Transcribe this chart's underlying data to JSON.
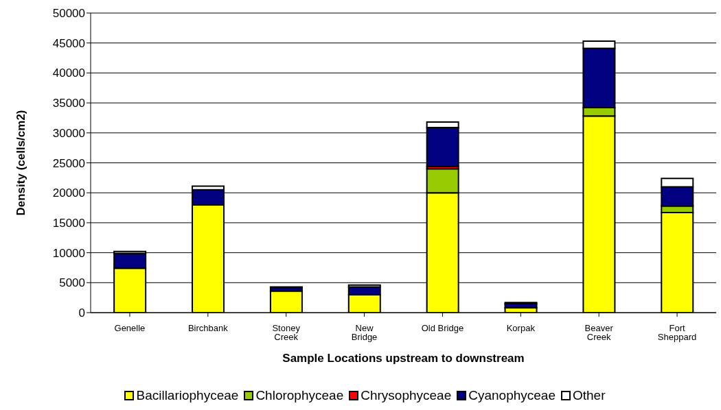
{
  "chart_data": {
    "type": "bar",
    "stacked": true,
    "xlabel": "Sample Locations upstream to downstream",
    "ylabel": "Density (cells/cm2)",
    "categories": [
      "Genelle",
      "Birchbank",
      "Stoney Creek",
      "New Bridge",
      "Old Bridge",
      "Korpak",
      "Beaver Creek",
      "Fort Sheppard"
    ],
    "series": [
      {
        "name": "Bacillariophyceae",
        "color": "#ffff00",
        "values": [
          7400,
          18000,
          3600,
          3000,
          20000,
          800,
          32800,
          16700
        ]
      },
      {
        "name": "Chlorophyceae",
        "color": "#99cc00",
        "values": [
          null,
          null,
          null,
          null,
          4000,
          null,
          1400,
          1100
        ]
      },
      {
        "name": "Chrysophyceae",
        "color": "#ff0000",
        "values": [
          0,
          0,
          0,
          0,
          400,
          0,
          0,
          0
        ]
      },
      {
        "name": "Cyanophyceae",
        "color": "#000080",
        "values": [
          2500,
          2500,
          600,
          1300,
          6500,
          700,
          9900,
          3200
        ]
      },
      {
        "name": "Other",
        "color": "#ffffff",
        "values": [
          300,
          600,
          100,
          300,
          900,
          200,
          1200,
          1400
        ]
      }
    ],
    "ylim": [
      0,
      50000
    ],
    "yticks": [
      0,
      5000,
      10000,
      15000,
      20000,
      25000,
      30000,
      35000,
      40000,
      45000,
      50000
    ],
    "grid": "y",
    "legend": "bottom"
  }
}
